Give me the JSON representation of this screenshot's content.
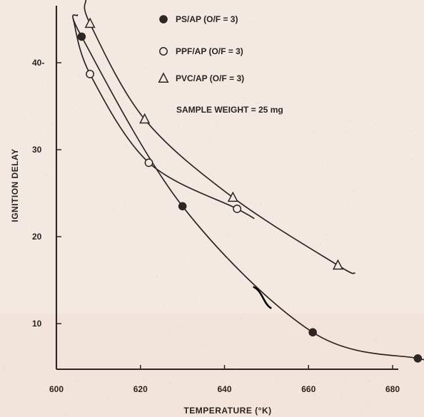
{
  "chart_data": {
    "type": "line",
    "title": "",
    "xlabel": "TEMPERATURE (°K)",
    "ylabel": "IGNITION DELAY",
    "xlim": [
      600,
      690
    ],
    "ylim": [
      5,
      48
    ],
    "x_ticks": [
      600,
      620,
      640,
      660,
      680
    ],
    "y_ticks": [
      10,
      20,
      30,
      40
    ],
    "x_tick_labels": [
      "600",
      "620",
      "640",
      "660",
      "680"
    ],
    "y_tick_labels": [
      "10",
      "20",
      "30",
      "40-"
    ],
    "legend_position": "top-right",
    "series": [
      {
        "name": "PS/AP (O/F = 3)",
        "marker": "filled-circle",
        "x": [
          606,
          630,
          661,
          686
        ],
        "y": [
          43,
          23.5,
          9,
          6
        ]
      },
      {
        "name": "PPF/AP (O/F = 3)",
        "marker": "open-circle",
        "x": [
          608,
          622,
          643
        ],
        "y": [
          38.7,
          28.5,
          23.2
        ]
      },
      {
        "name": "PVC/AP (O/F = 3)",
        "marker": "open-triangle",
        "x": [
          608,
          621,
          642,
          667
        ],
        "y": [
          44.5,
          33.5,
          24.5,
          16.7
        ]
      }
    ],
    "annotations": [
      {
        "text": "SAMPLE WEIGHT = 25 mg"
      }
    ],
    "colors": {
      "ink": "#2d2622",
      "paper": "#f4e9e1",
      "paper_lower": "#f2e2d7"
    }
  }
}
